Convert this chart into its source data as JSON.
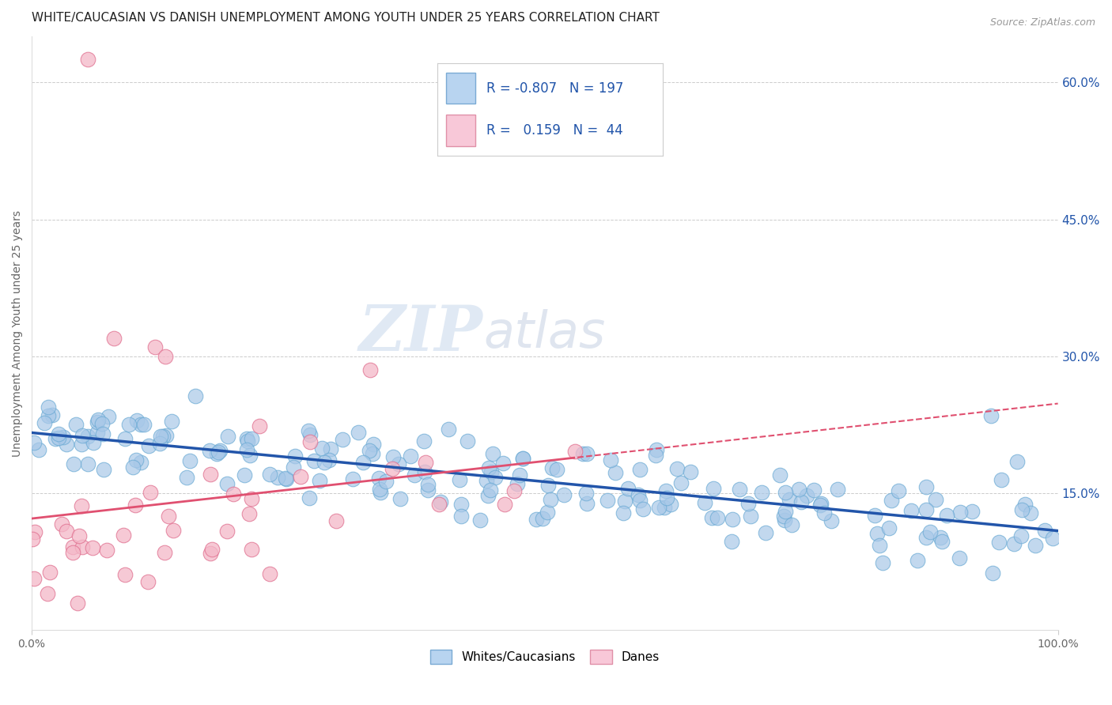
{
  "title": "WHITE/CAUCASIAN VS DANISH UNEMPLOYMENT AMONG YOUTH UNDER 25 YEARS CORRELATION CHART",
  "source": "Source: ZipAtlas.com",
  "ylabel": "Unemployment Among Youth under 25 years",
  "x_tick_labels": [
    "0.0%",
    "100.0%"
  ],
  "y_tick_labels_right": [
    "15.0%",
    "30.0%",
    "45.0%",
    "60.0%"
  ],
  "y_tick_values_right": [
    0.15,
    0.3,
    0.45,
    0.6
  ],
  "xlim": [
    0.0,
    1.0
  ],
  "ylim": [
    0.0,
    0.65
  ],
  "blue_scatter_color": "#a8c8e8",
  "blue_scatter_edge": "#6aaad4",
  "pink_scatter_color": "#f4b8c8",
  "pink_scatter_edge": "#e07090",
  "blue_line_color": "#2255aa",
  "pink_line_color": "#e05070",
  "legend_blue_fill": "#b8d4f0",
  "legend_blue_edge": "#7aaad4",
  "legend_pink_fill": "#f8c8d8",
  "legend_pink_edge": "#e090a8",
  "R_blue": -0.807,
  "N_blue": 197,
  "R_pink": 0.159,
  "N_pink": 44,
  "legend_label_blue": "Whites/Caucasians",
  "legend_label_pink": "Danes",
  "watermark_zip": "ZIP",
  "watermark_atlas": "atlas",
  "title_fontsize": 11,
  "axis_label_fontsize": 10,
  "tick_fontsize": 10,
  "blue_scatter_seed": 42,
  "pink_scatter_seed": 99
}
